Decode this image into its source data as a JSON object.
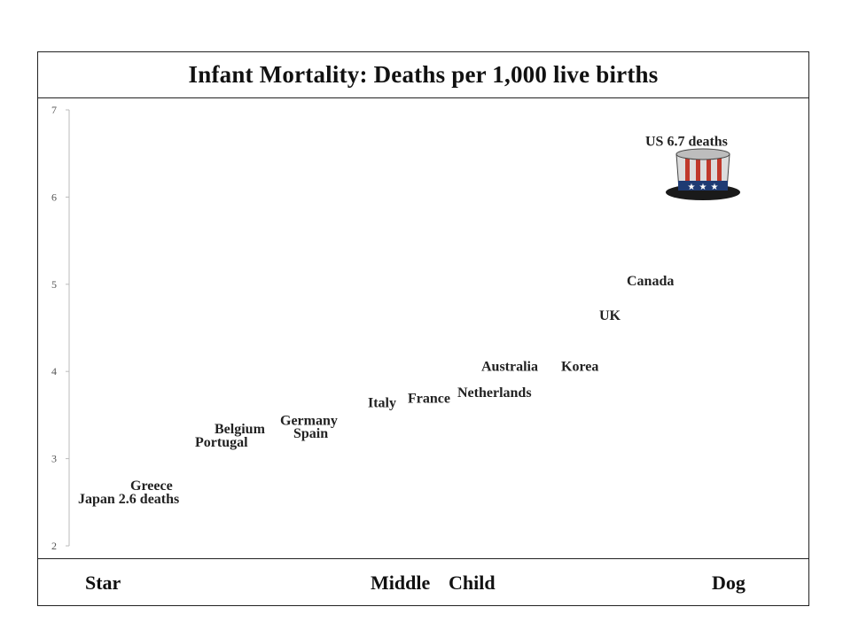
{
  "chart_data": {
    "type": "scatter",
    "title": "Infant Mortality: Deaths per 1,000 live births",
    "xlabel": "",
    "ylabel": "",
    "ylim": [
      2,
      7
    ],
    "y_ticks": [
      "2",
      "3",
      "4",
      "5",
      "6",
      "7"
    ],
    "x_categories": [
      "Star",
      "Middle",
      "Child",
      "Dog"
    ],
    "grid": false,
    "legend": "none",
    "points": [
      {
        "label": "Japan 2.6 deaths",
        "y": 2.55
      },
      {
        "label": "Greece",
        "y": 2.7
      },
      {
        "label": "Portugal",
        "y": 3.2
      },
      {
        "label": "Belgium",
        "y": 3.35
      },
      {
        "label": "Spain",
        "y": 3.3
      },
      {
        "label": "Germany",
        "y": 3.45
      },
      {
        "label": "Italy",
        "y": 3.65
      },
      {
        "label": "France",
        "y": 3.7
      },
      {
        "label": "Netherlands",
        "y": 3.77
      },
      {
        "label": "Australia",
        "y": 4.07
      },
      {
        "label": "Korea",
        "y": 4.07
      },
      {
        "label": "UK",
        "y": 4.65
      },
      {
        "label": "Canada",
        "y": 5.05
      },
      {
        "label": "US 6.7 deaths",
        "y": 6.65
      }
    ],
    "marker_icon": "uncle-sam-hat-icon",
    "colors": {
      "text": "#222222",
      "axis": "#bbbbbb",
      "hat_red": "#c0392b",
      "hat_blue": "#1f3b73"
    }
  }
}
